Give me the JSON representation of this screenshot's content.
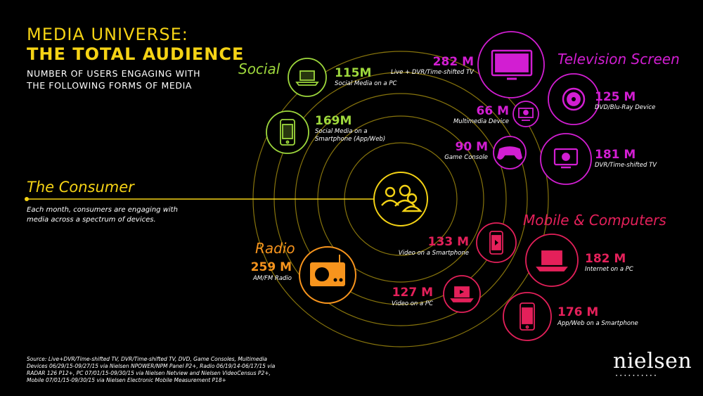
{
  "header": {
    "line1": "MEDIA UNIVERSE:",
    "line2": "THE TOTAL AUDIENCE",
    "sub1": "NUMBER OF USERS ENGAGING WITH",
    "sub2": "THE FOLLOWING FORMS OF MEDIA"
  },
  "consumer": {
    "title": "The Consumer",
    "desc1": "Each month, consumers are engaging with",
    "desc2": "media across a spectrum of devices."
  },
  "categories": {
    "social": "Social",
    "television": "Television Screen",
    "radio": "Radio",
    "mobile": "Mobile & Computers"
  },
  "items": {
    "social_pc": {
      "value": "115M",
      "label": "Social Media on a PC"
    },
    "social_phone": {
      "value": "169M",
      "label1": "Social Media on a",
      "label2": "Smartphone (App/Web)"
    },
    "tv_live": {
      "value": "282 M",
      "label": "Live + DVR/Time-shifted TV"
    },
    "tv_dvd": {
      "value": "125 M",
      "label": "DVD/Blu-Ray Device"
    },
    "tv_multimedia": {
      "value": "66 M",
      "label": "Multimedia Device"
    },
    "tv_game": {
      "value": "90 M",
      "label": "Game Console"
    },
    "tv_dvr": {
      "value": "181 M",
      "label": "DVR/Time-shifted TV"
    },
    "radio": {
      "value": "259 M",
      "label": "AM/FM Radio"
    },
    "video_phone": {
      "value": "133 M",
      "label": "Video on a Smartphone"
    },
    "video_pc": {
      "value": "127 M",
      "label": "Video on a PC"
    },
    "internet_pc": {
      "value": "182 M",
      "label": "Internet on a PC"
    },
    "app_phone": {
      "value": "176 M",
      "label": "App/Web on a Smartphone"
    }
  },
  "source": {
    "l1": "Source:  Live+DVR/Time-shifted TV, DVR/Time-shifted TV, DVD, Game Consoles, Multimedia",
    "l2": "Devices 06/29/15-09/27/15 via Nielsen NPOWER/NPM Panel P2+, Radio 06/19/14-06/17/15 via",
    "l3": "RADAR 126 P12+, PC 07/01/15-09/30/15 via Nielsen Netview and Nielsen VideoCensus P2+,",
    "l4": "Mobile 07/01/15-09/30/15 via Nielsen Electronic Mobile Measurement P18+"
  },
  "logo": "nielsen",
  "colors": {
    "background": "#000000",
    "yellow": "#f5d315",
    "green": "#9ed83c",
    "magenta": "#d21ed2",
    "orange": "#f7941d",
    "red": "#e4205a"
  }
}
